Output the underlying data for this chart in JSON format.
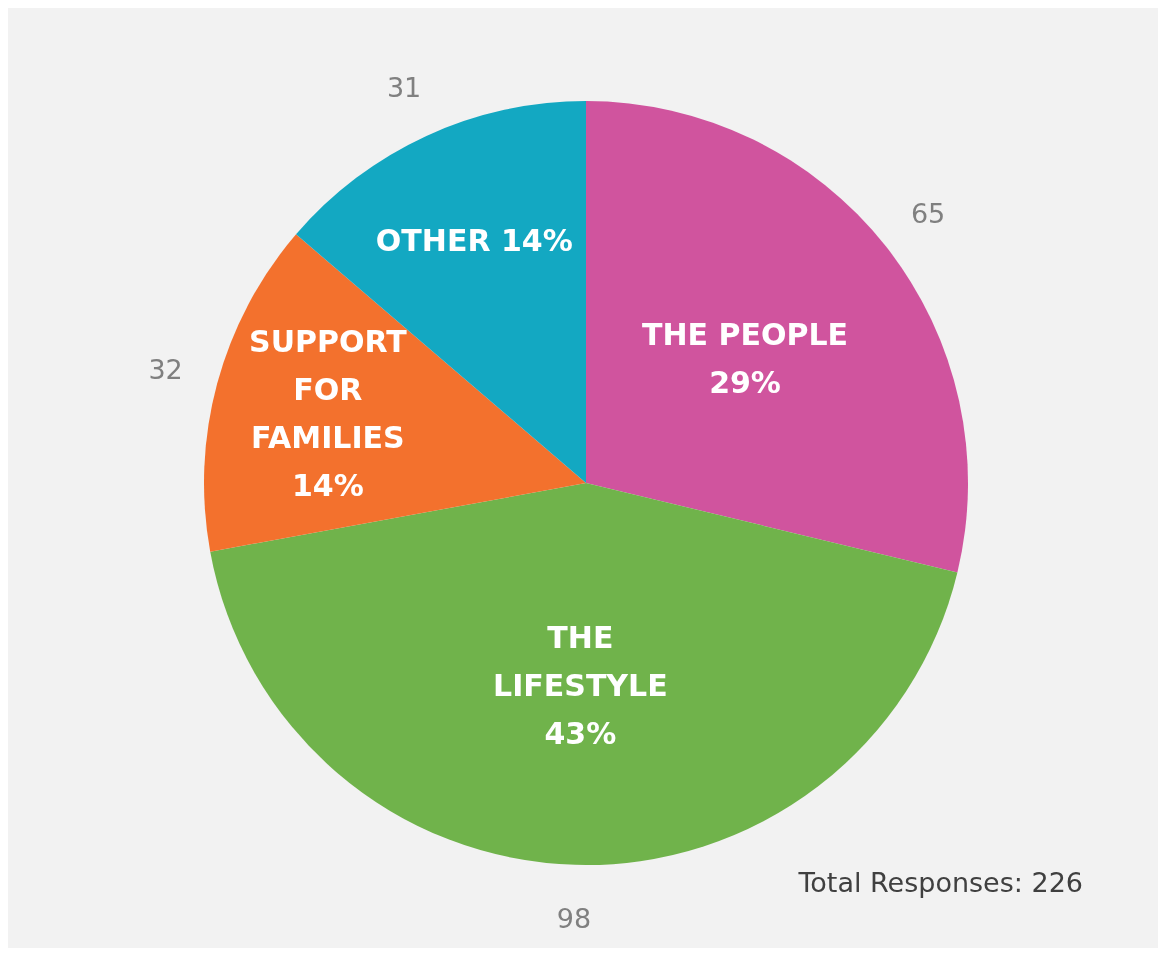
{
  "chart_data": {
    "type": "pie",
    "categories": [
      "THE PEOPLE 29%",
      "THE LIFESTYLE 43%",
      "SUPPORT FOR FAMILIES 14%",
      "OTHER 14%"
    ],
    "values": [
      65,
      98,
      32,
      31
    ],
    "colors": [
      "#d0549e",
      "#70b34b",
      "#f3712d",
      "#13a8c2"
    ],
    "data_labels": true,
    "annotations": [
      "Total Responses: 226"
    ]
  }
}
